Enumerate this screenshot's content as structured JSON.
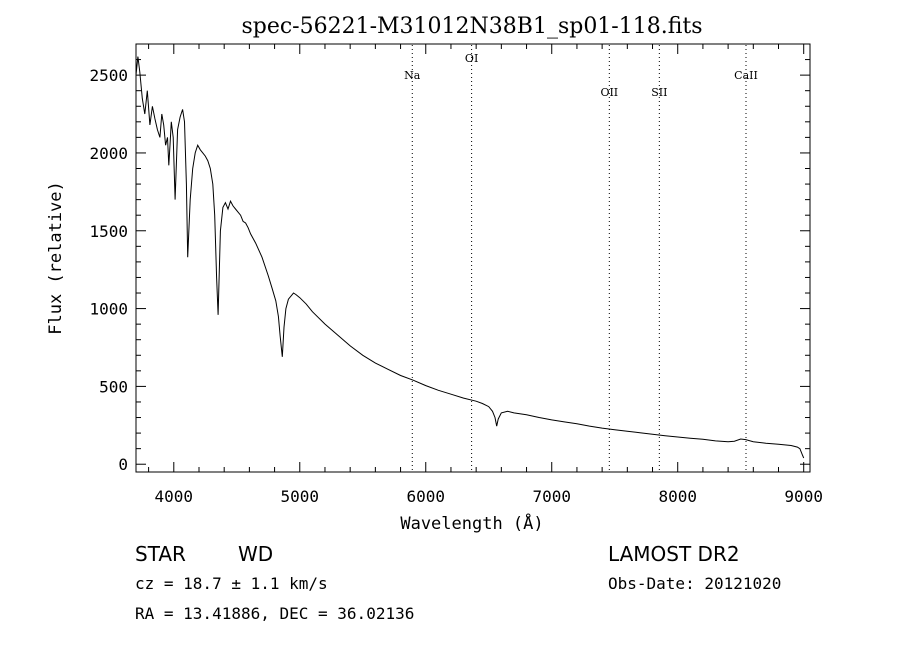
{
  "chart_data": {
    "type": "line",
    "title": "spec-56221-M31012N38B1_sp01-118.fits",
    "xlabel": "Wavelength (Å)",
    "ylabel": "Flux (relative)",
    "xlim": [
      3700,
      9050
    ],
    "ylim": [
      -50,
      2700
    ],
    "xticks": [
      4000,
      5000,
      6000,
      7000,
      8000,
      9000
    ],
    "yticks": [
      0,
      500,
      1000,
      1500,
      2000,
      2500
    ],
    "grid": false,
    "legend": "none",
    "series": [
      {
        "x": [
          3700,
          3715,
          3730,
          3750,
          3770,
          3790,
          3810,
          3830,
          3850,
          3870,
          3890,
          3905,
          3920,
          3935,
          3950,
          3960,
          3970,
          3980,
          3995,
          4010,
          4030,
          4050,
          4070,
          4085,
          4100,
          4110,
          4130,
          4150,
          4170,
          4190,
          4210,
          4230,
          4250,
          4270,
          4290,
          4310,
          4325,
          4340,
          4352,
          4370,
          4390,
          4410,
          4430,
          4450,
          4470,
          4490,
          4510,
          4530,
          4550,
          4570,
          4590,
          4610,
          4650,
          4700,
          4750,
          4780,
          4810,
          4830,
          4845,
          4861,
          4875,
          4890,
          4910,
          4930,
          4950,
          4970,
          5000,
          5050,
          5100,
          5200,
          5300,
          5400,
          5500,
          5600,
          5700,
          5800,
          5900,
          6000,
          6100,
          6200,
          6300,
          6400,
          6450,
          6500,
          6530,
          6550,
          6563,
          6575,
          6600,
          6650,
          6700,
          6800,
          6900,
          7000,
          7100,
          7200,
          7300,
          7400,
          7500,
          7600,
          7700,
          7800,
          7900,
          8000,
          8100,
          8200,
          8300,
          8400,
          8450,
          8500,
          8540,
          8600,
          8700,
          8800,
          8900,
          8950,
          8970,
          8990,
          9000
        ],
        "y": [
          2500,
          2620,
          2520,
          2350,
          2250,
          2400,
          2180,
          2300,
          2220,
          2150,
          2100,
          2250,
          2180,
          2050,
          2100,
          1920,
          2050,
          2200,
          2100,
          1700,
          2150,
          2230,
          2280,
          2200,
          1800,
          1330,
          1700,
          1900,
          2000,
          2050,
          2020,
          2000,
          1980,
          1950,
          1900,
          1800,
          1600,
          1200,
          960,
          1500,
          1650,
          1680,
          1640,
          1690,
          1660,
          1640,
          1620,
          1600,
          1560,
          1550,
          1520,
          1480,
          1420,
          1330,
          1210,
          1130,
          1050,
          950,
          820,
          690,
          880,
          1000,
          1060,
          1080,
          1100,
          1090,
          1070,
          1030,
          980,
          900,
          830,
          760,
          700,
          650,
          610,
          570,
          540,
          505,
          475,
          450,
          425,
          405,
          390,
          370,
          340,
          300,
          245,
          290,
          330,
          340,
          330,
          318,
          300,
          285,
          272,
          260,
          245,
          232,
          222,
          212,
          202,
          192,
          183,
          175,
          167,
          160,
          150,
          145,
          148,
          162,
          158,
          145,
          135,
          128,
          120,
          110,
          100,
          60,
          40
        ]
      }
    ],
    "spectral_lines": [
      {
        "label": "Na",
        "x": 5893
      },
      {
        "label": "OI",
        "x": 6364
      },
      {
        "label": "OII",
        "x": 7457
      },
      {
        "label": "SII",
        "x": 7854
      },
      {
        "label": "CaII",
        "x": 8542
      }
    ]
  },
  "info": {
    "object_class": "STAR",
    "subclass": "WD",
    "survey": "LAMOST DR2",
    "cz_text": "cz = 18.7 ± 1.1 km/s",
    "obs_date": "Obs-Date: 20121020",
    "coords": "RA =  13.41886, DEC =  36.02136"
  }
}
